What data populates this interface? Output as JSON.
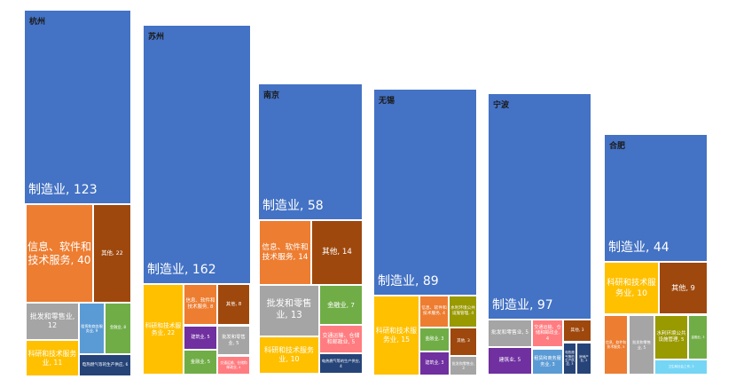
{
  "chart_data": {
    "type": "treemap",
    "label_format": "{label}, {value}",
    "cities": [
      {
        "name": "杭州",
        "items": [
          {
            "label": "制造业",
            "value": 123,
            "color": "#4472C4"
          },
          {
            "label": "信息、软件和技术服务",
            "value": 40,
            "color": "#ED7D31"
          },
          {
            "label": "其他",
            "value": 22,
            "color": "#9E480E"
          },
          {
            "label": "批发和零售业",
            "value": 12,
            "color": "#A5A5A5"
          },
          {
            "label": "科研和技术服务业",
            "value": 11,
            "color": "#FFC000"
          },
          {
            "label": "租赁和商务服务业",
            "value": 9,
            "color": "#5B9BD5"
          },
          {
            "label": "金融业",
            "value": 8,
            "color": "#70AD47"
          },
          {
            "label": "电热燃气等的生产供应",
            "value": 6,
            "color": "#264478"
          }
        ]
      },
      {
        "name": "苏州",
        "items": [
          {
            "label": "制造业",
            "value": 162,
            "color": "#4472C4"
          },
          {
            "label": "科研和技术服务业",
            "value": 22,
            "color": "#FFC000"
          },
          {
            "label": "信息、软件和技术服务",
            "value": 8,
            "color": "#ED7D31"
          },
          {
            "label": "其他",
            "value": 8,
            "color": "#9E480E"
          },
          {
            "label": "建筑业",
            "value": 5,
            "color": "#7030A0"
          },
          {
            "label": "批发和零售业",
            "value": 5,
            "color": "#A5A5A5"
          },
          {
            "label": "金融业",
            "value": 5,
            "color": "#70AD47"
          },
          {
            "label": "交通运输、仓储和邮政业",
            "value": 4,
            "color": "#FF7C80"
          }
        ]
      },
      {
        "name": "南京",
        "items": [
          {
            "label": "制造业",
            "value": 58,
            "color": "#4472C4"
          },
          {
            "label": "信息、软件和技术服务",
            "value": 14,
            "color": "#ED7D31"
          },
          {
            "label": "其他",
            "value": 14,
            "color": "#9E480E"
          },
          {
            "label": "批发和零售业",
            "value": 13,
            "color": "#A5A5A5"
          },
          {
            "label": "金融业",
            "value": 7,
            "color": "#70AD47"
          },
          {
            "label": "科研和技术服务业",
            "value": 10,
            "color": "#FFC000"
          },
          {
            "label": "交通运输、仓储和邮政业",
            "value": 5,
            "color": "#FF7C80"
          },
          {
            "label": "电热燃气等的生产供应",
            "value": 4,
            "color": "#264478"
          }
        ]
      },
      {
        "name": "无锡",
        "items": [
          {
            "label": "制造业",
            "value": 89,
            "color": "#4472C4"
          },
          {
            "label": "科研和技术服务业",
            "value": 15,
            "color": "#FFC000"
          },
          {
            "label": "信息、软件和技术服务",
            "value": 4,
            "color": "#ED7D31"
          },
          {
            "label": "水利环境公共设施管理",
            "value": 4,
            "color": "#999900"
          },
          {
            "label": "金融业",
            "value": 3,
            "color": "#70AD47"
          },
          {
            "label": "其他",
            "value": 3,
            "color": "#9E480E"
          },
          {
            "label": "建筑业",
            "value": 3,
            "color": "#7030A0"
          },
          {
            "label": "批发和零售业",
            "value": 3,
            "color": "#A5A5A5"
          }
        ]
      },
      {
        "name": "宁波",
        "items": [
          {
            "label": "制造业",
            "value": 97,
            "color": "#4472C4"
          },
          {
            "label": "批发和零售业",
            "value": 5,
            "color": "#A5A5A5"
          },
          {
            "label": "交通运输、仓储和邮政业",
            "value": 4,
            "color": "#FF7C80"
          },
          {
            "label": "其他",
            "value": 3,
            "color": "#9E480E"
          },
          {
            "label": "建筑业",
            "value": 5,
            "color": "#7030A0"
          },
          {
            "label": "租赁和商务服务业",
            "value": 3,
            "color": "#5B9BD5"
          },
          {
            "label": "电热燃气等的生产供应",
            "value": 3,
            "color": "#264478"
          },
          {
            "label": "房地产业",
            "value": 2,
            "color": "#264478"
          }
        ]
      },
      {
        "name": "合肥",
        "items": [
          {
            "label": "制造业",
            "value": 44,
            "color": "#4472C4"
          },
          {
            "label": "科研和技术服务业",
            "value": 10,
            "color": "#FFC000"
          },
          {
            "label": "其他",
            "value": 9,
            "color": "#9E480E"
          },
          {
            "label": "信息、软件和技术服务",
            "value": 5,
            "color": "#ED7D31"
          },
          {
            "label": "批发和零售业",
            "value": 5,
            "color": "#A5A5A5"
          },
          {
            "label": "水利环境公共设施管理",
            "value": 5,
            "color": "#999900"
          },
          {
            "label": "金融业",
            "value": 3,
            "color": "#70AD47"
          },
          {
            "label": "卫生和社会工作",
            "value": 3,
            "color": "#75D5F5"
          }
        ]
      }
    ]
  }
}
